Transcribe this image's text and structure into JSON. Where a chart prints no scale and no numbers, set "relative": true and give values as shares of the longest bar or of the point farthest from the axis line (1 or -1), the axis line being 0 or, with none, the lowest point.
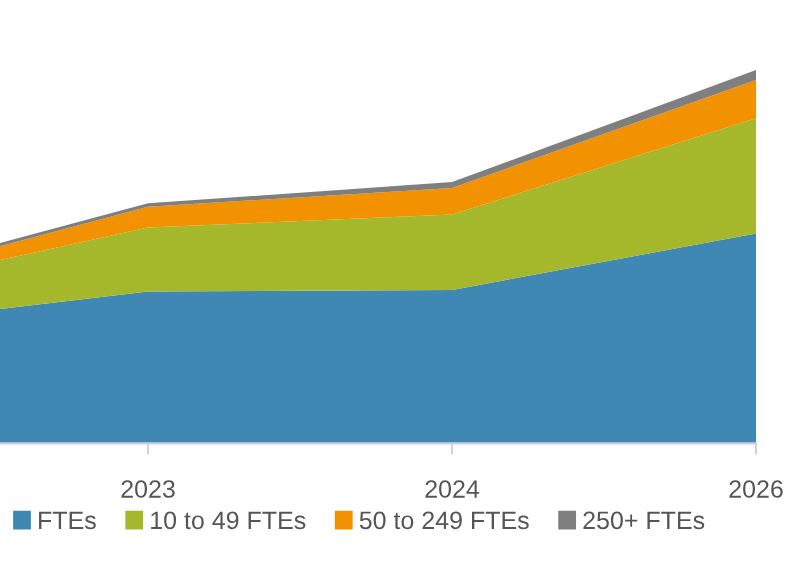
{
  "chart_data": {
    "type": "area",
    "stacked": true,
    "relative": true,
    "categories": [
      null,
      "2023",
      "2024",
      "2026"
    ],
    "series": [
      {
        "name": "FTEs",
        "color": "#3f88b4",
        "values": [
          0.31,
          0.407,
          0.411,
          0.562
        ]
      },
      {
        "name": "10 to 49 FTEs",
        "color": "#a5b72b",
        "values": [
          0.089,
          0.171,
          0.202,
          0.309
        ]
      },
      {
        "name": "50 to 249 FTEs",
        "color": "#f39200",
        "values": [
          0.017,
          0.056,
          0.071,
          0.102
        ]
      },
      {
        "name": "250+ FTEs",
        "color": "#7f7f7f",
        "values": [
          0.009,
          0.009,
          0.016,
          0.027
        ]
      }
    ],
    "legend": "bottom",
    "grid": false
  }
}
